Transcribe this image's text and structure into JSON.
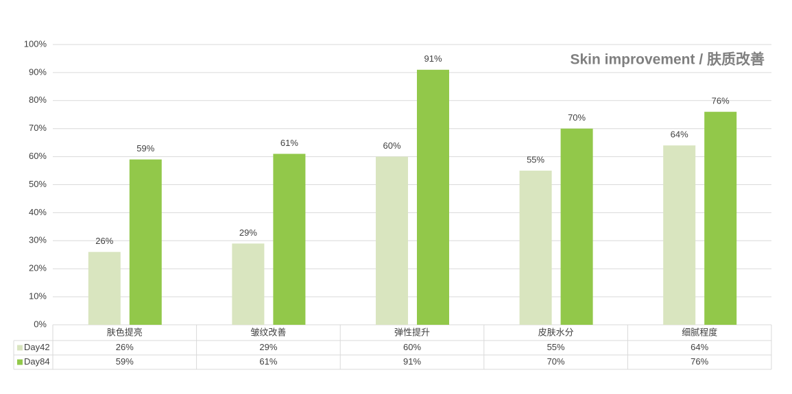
{
  "chart_data": {
    "type": "bar",
    "title": "Skin improvement / 肤质改善",
    "categories": [
      "肤色提亮",
      "皱纹改善",
      "弹性提升",
      "皮肤水分",
      "细腻程度"
    ],
    "series": [
      {
        "name": "Day42",
        "color": "#d9e5bf",
        "values": [
          26,
          29,
          60,
          55,
          64
        ],
        "value_labels": [
          "26%",
          "29%",
          "60%",
          "55%",
          "64%"
        ]
      },
      {
        "name": "Day84",
        "color": "#92c84a",
        "values": [
          59,
          61,
          91,
          70,
          76
        ],
        "value_labels": [
          "59%",
          "61%",
          "91%",
          "70%",
          "76%"
        ]
      }
    ],
    "ylim": [
      0,
      100
    ],
    "yticks": [
      {
        "value": 0,
        "label": "0%"
      },
      {
        "value": 10,
        "label": "10%"
      },
      {
        "value": 20,
        "label": "20%"
      },
      {
        "value": 30,
        "label": "30%"
      },
      {
        "value": 40,
        "label": "40%"
      },
      {
        "value": 50,
        "label": "50%"
      },
      {
        "value": 60,
        "label": "60%"
      },
      {
        "value": 70,
        "label": "70%"
      },
      {
        "value": 80,
        "label": "80%"
      },
      {
        "value": 90,
        "label": "90%"
      },
      {
        "value": 100,
        "label": "100%"
      }
    ],
    "grid": true
  }
}
